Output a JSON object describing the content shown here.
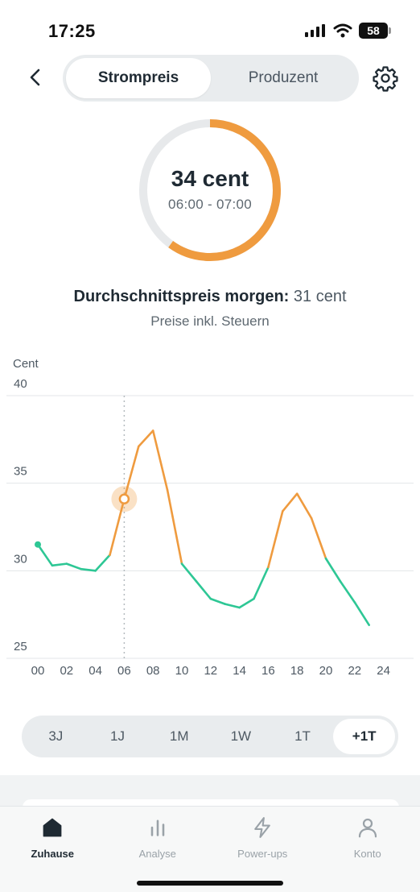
{
  "status_bar": {
    "time": "17:25",
    "battery": "58"
  },
  "header": {
    "tabs": [
      {
        "label": "Strompreis",
        "active": true
      },
      {
        "label": "Produzent",
        "active": false
      }
    ]
  },
  "gauge": {
    "price": "34 cent",
    "time_range": "06:00 - 07:00",
    "fill_fraction": 0.6
  },
  "summary": {
    "avg_label": "Durchschnittspreis morgen:",
    "avg_value": "31 cent",
    "tax_note": "Preise inkl. Steuern"
  },
  "colors": {
    "accent": "#ef9b3f",
    "green": "#2ec795",
    "track": "#e7e9eb"
  },
  "chart_data": {
    "type": "line",
    "ylabel": "Cent",
    "ylim": [
      25,
      40
    ],
    "y_ticks": [
      "40",
      "35",
      "30",
      "25"
    ],
    "x_ticks": [
      "00",
      "02",
      "04",
      "06",
      "08",
      "10",
      "12",
      "14",
      "16",
      "18",
      "20",
      "22",
      "24"
    ],
    "x": [
      0,
      1,
      2,
      3,
      4,
      5,
      6,
      7,
      8,
      9,
      10,
      11,
      12,
      13,
      14,
      15,
      16,
      17,
      18,
      19,
      20,
      21,
      22,
      23
    ],
    "values": [
      31.5,
      30.3,
      30.4,
      30.1,
      30.0,
      30.9,
      34.1,
      37.1,
      38.0,
      34.6,
      30.4,
      29.4,
      28.4,
      28.1,
      27.9,
      28.4,
      30.2,
      33.4,
      34.4,
      33.0,
      30.7,
      29.4,
      28.2,
      26.9
    ],
    "highlight_x": 6,
    "threshold": 31,
    "grid": true
  },
  "range_selector": {
    "options": [
      {
        "label": "3J",
        "active": false
      },
      {
        "label": "1J",
        "active": false
      },
      {
        "label": "1M",
        "active": false
      },
      {
        "label": "1W",
        "active": false
      },
      {
        "label": "1T",
        "active": false
      },
      {
        "label": "+1T",
        "active": true
      }
    ]
  },
  "tabbar": {
    "items": [
      {
        "label": "Zuhause",
        "icon": "home-icon",
        "active": true
      },
      {
        "label": "Analyse",
        "icon": "bar-chart-icon",
        "active": false
      },
      {
        "label": "Power-ups",
        "icon": "lightning-icon",
        "active": false
      },
      {
        "label": "Konto",
        "icon": "person-icon",
        "active": false
      }
    ]
  }
}
